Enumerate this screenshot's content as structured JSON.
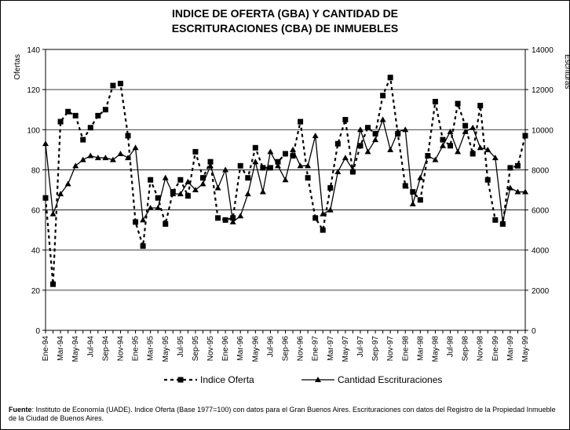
{
  "chart_data": {
    "type": "line",
    "title": [
      "INDICE DE OFERTA (GBA) Y CANTIDAD DE",
      "ESCRITURACIONES (CBA) DE INMUEBLES"
    ],
    "ylabel": "Ofertas",
    "y2label": "Escrituras",
    "categories": [
      "Ene-94",
      null,
      "Mar-94",
      null,
      "May-94",
      null,
      "Jul-94",
      null,
      "Sep-94",
      null,
      "Nov-94",
      null,
      "Ene-95",
      null,
      "Mar-95",
      null,
      "May-95",
      null,
      "Jul-95",
      null,
      "Sep-95",
      null,
      "Nov-95",
      null,
      "Ene-96",
      null,
      "Mar-96",
      null,
      "May-96",
      null,
      "Jul-96",
      null,
      "Sep-96",
      null,
      "Nov-96",
      null,
      "Ene-97",
      null,
      "Mar-97",
      null,
      "May-97",
      null,
      "Jul-97",
      null,
      "Sep-97",
      null,
      "Nov-97",
      null,
      "Ene-98",
      null,
      "Mar-98",
      null,
      "May-98",
      null,
      "Jul-98",
      null,
      "Sep-98",
      null,
      "Nov-98",
      null,
      "Ene-99",
      null,
      "Mar-99",
      null,
      "May-99"
    ],
    "series": [
      {
        "name": "Indice Oferta",
        "color": "#000000",
        "line_style": "dashed",
        "marker": "square",
        "values": [
          66,
          23,
          104,
          109,
          107,
          95,
          101,
          107,
          110,
          122,
          123,
          97,
          54,
          42,
          75,
          66,
          53,
          69,
          75,
          67,
          89,
          76,
          84,
          56,
          55,
          56,
          82,
          76,
          91,
          81,
          81,
          84,
          88,
          87,
          104,
          76,
          56,
          50,
          71,
          93,
          105,
          79,
          92,
          101,
          98,
          117,
          126,
          98,
          72,
          69,
          65,
          87,
          114,
          95,
          92,
          113,
          102,
          88,
          112,
          75,
          55,
          53,
          81,
          82,
          97
        ]
      },
      {
        "name": "Cantidad Escrituraciones",
        "color": "#000000",
        "line_style": "solid",
        "marker": "triangle",
        "axis": "y2",
        "values": [
          9300,
          5800,
          6800,
          7300,
          8200,
          8500,
          8700,
          8600,
          8600,
          8500,
          8800,
          8600,
          9100,
          5500,
          6100,
          6100,
          7600,
          6800,
          6800,
          7400,
          7000,
          7300,
          8200,
          7100,
          8000,
          5400,
          5700,
          6800,
          8400,
          6900,
          8900,
          8200,
          7500,
          9000,
          8200,
          8200,
          9700,
          5800,
          6000,
          7900,
          8600,
          8000,
          10000,
          8900,
          9500,
          10500,
          9000,
          9900,
          10000,
          6300,
          7600,
          8700,
          8500,
          9200,
          9900,
          8900,
          9900,
          10100,
          9100,
          9000,
          8600,
          5400,
          7100,
          6900,
          6900
        ]
      }
    ],
    "ylim": [
      0,
      140
    ],
    "yticks": [
      0,
      20,
      40,
      60,
      80,
      100,
      120,
      140
    ],
    "y2lim": [
      0,
      14000
    ],
    "y2ticks": [
      0,
      2000,
      4000,
      6000,
      8000,
      10000,
      12000,
      14000
    ],
    "grid": true,
    "legend": "bottom",
    "source_label": "Fuente",
    "source_text": ": Instituto de Economía (UADE). Indice Oferta (Base 1977=100) con datos para el Gran Buenos Aires. Escrituraciones con datos del Registro de la Propiedad Inmueble de la Ciudad de Buenos Aires."
  }
}
